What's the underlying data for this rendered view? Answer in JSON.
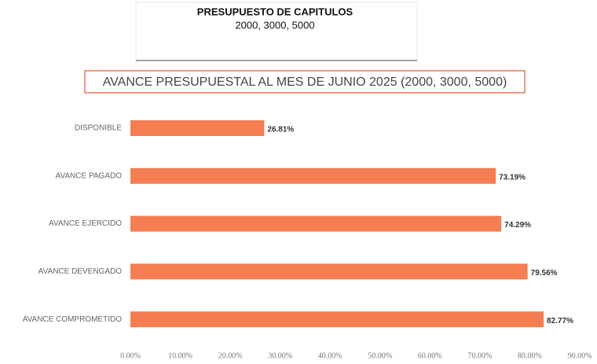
{
  "header": {
    "title": "PRESUPUESTO DE CAPITULOS",
    "subtitle": "2000, 3000, 5000"
  },
  "chart_data": {
    "type": "hbar",
    "title": "AVANCE PRESUPUESTAL AL MES DE JUNIO 2025 (2000, 3000, 5000)",
    "categories": [
      "DISPONIBLE",
      "AVANCE PAGADO",
      "AVANCE EJERCIDO",
      "AVANCE DEVENGADO",
      "AVANCE COMPROMETIDO"
    ],
    "values": [
      26.81,
      73.19,
      74.29,
      79.56,
      82.77
    ],
    "value_labels": [
      "26.81%",
      "73.19%",
      "74.29%",
      "79.56%",
      "82.77%"
    ],
    "color": "#f47d52",
    "xlim": [
      0,
      90
    ],
    "xticks": [
      {
        "value": 0,
        "label": "0.00%"
      },
      {
        "value": 10,
        "label": "10.00%"
      },
      {
        "value": 20,
        "label": "20.00%"
      },
      {
        "value": 30,
        "label": "30.00%"
      },
      {
        "value": 40,
        "label": "40.00%"
      },
      {
        "value": 50,
        "label": "50.00%"
      },
      {
        "value": 60,
        "label": "60.00%"
      },
      {
        "value": 70,
        "label": "70.00%"
      },
      {
        "value": 80,
        "label": "80.00%"
      },
      {
        "value": 90,
        "label": "90.00%"
      }
    ],
    "grid": false
  }
}
